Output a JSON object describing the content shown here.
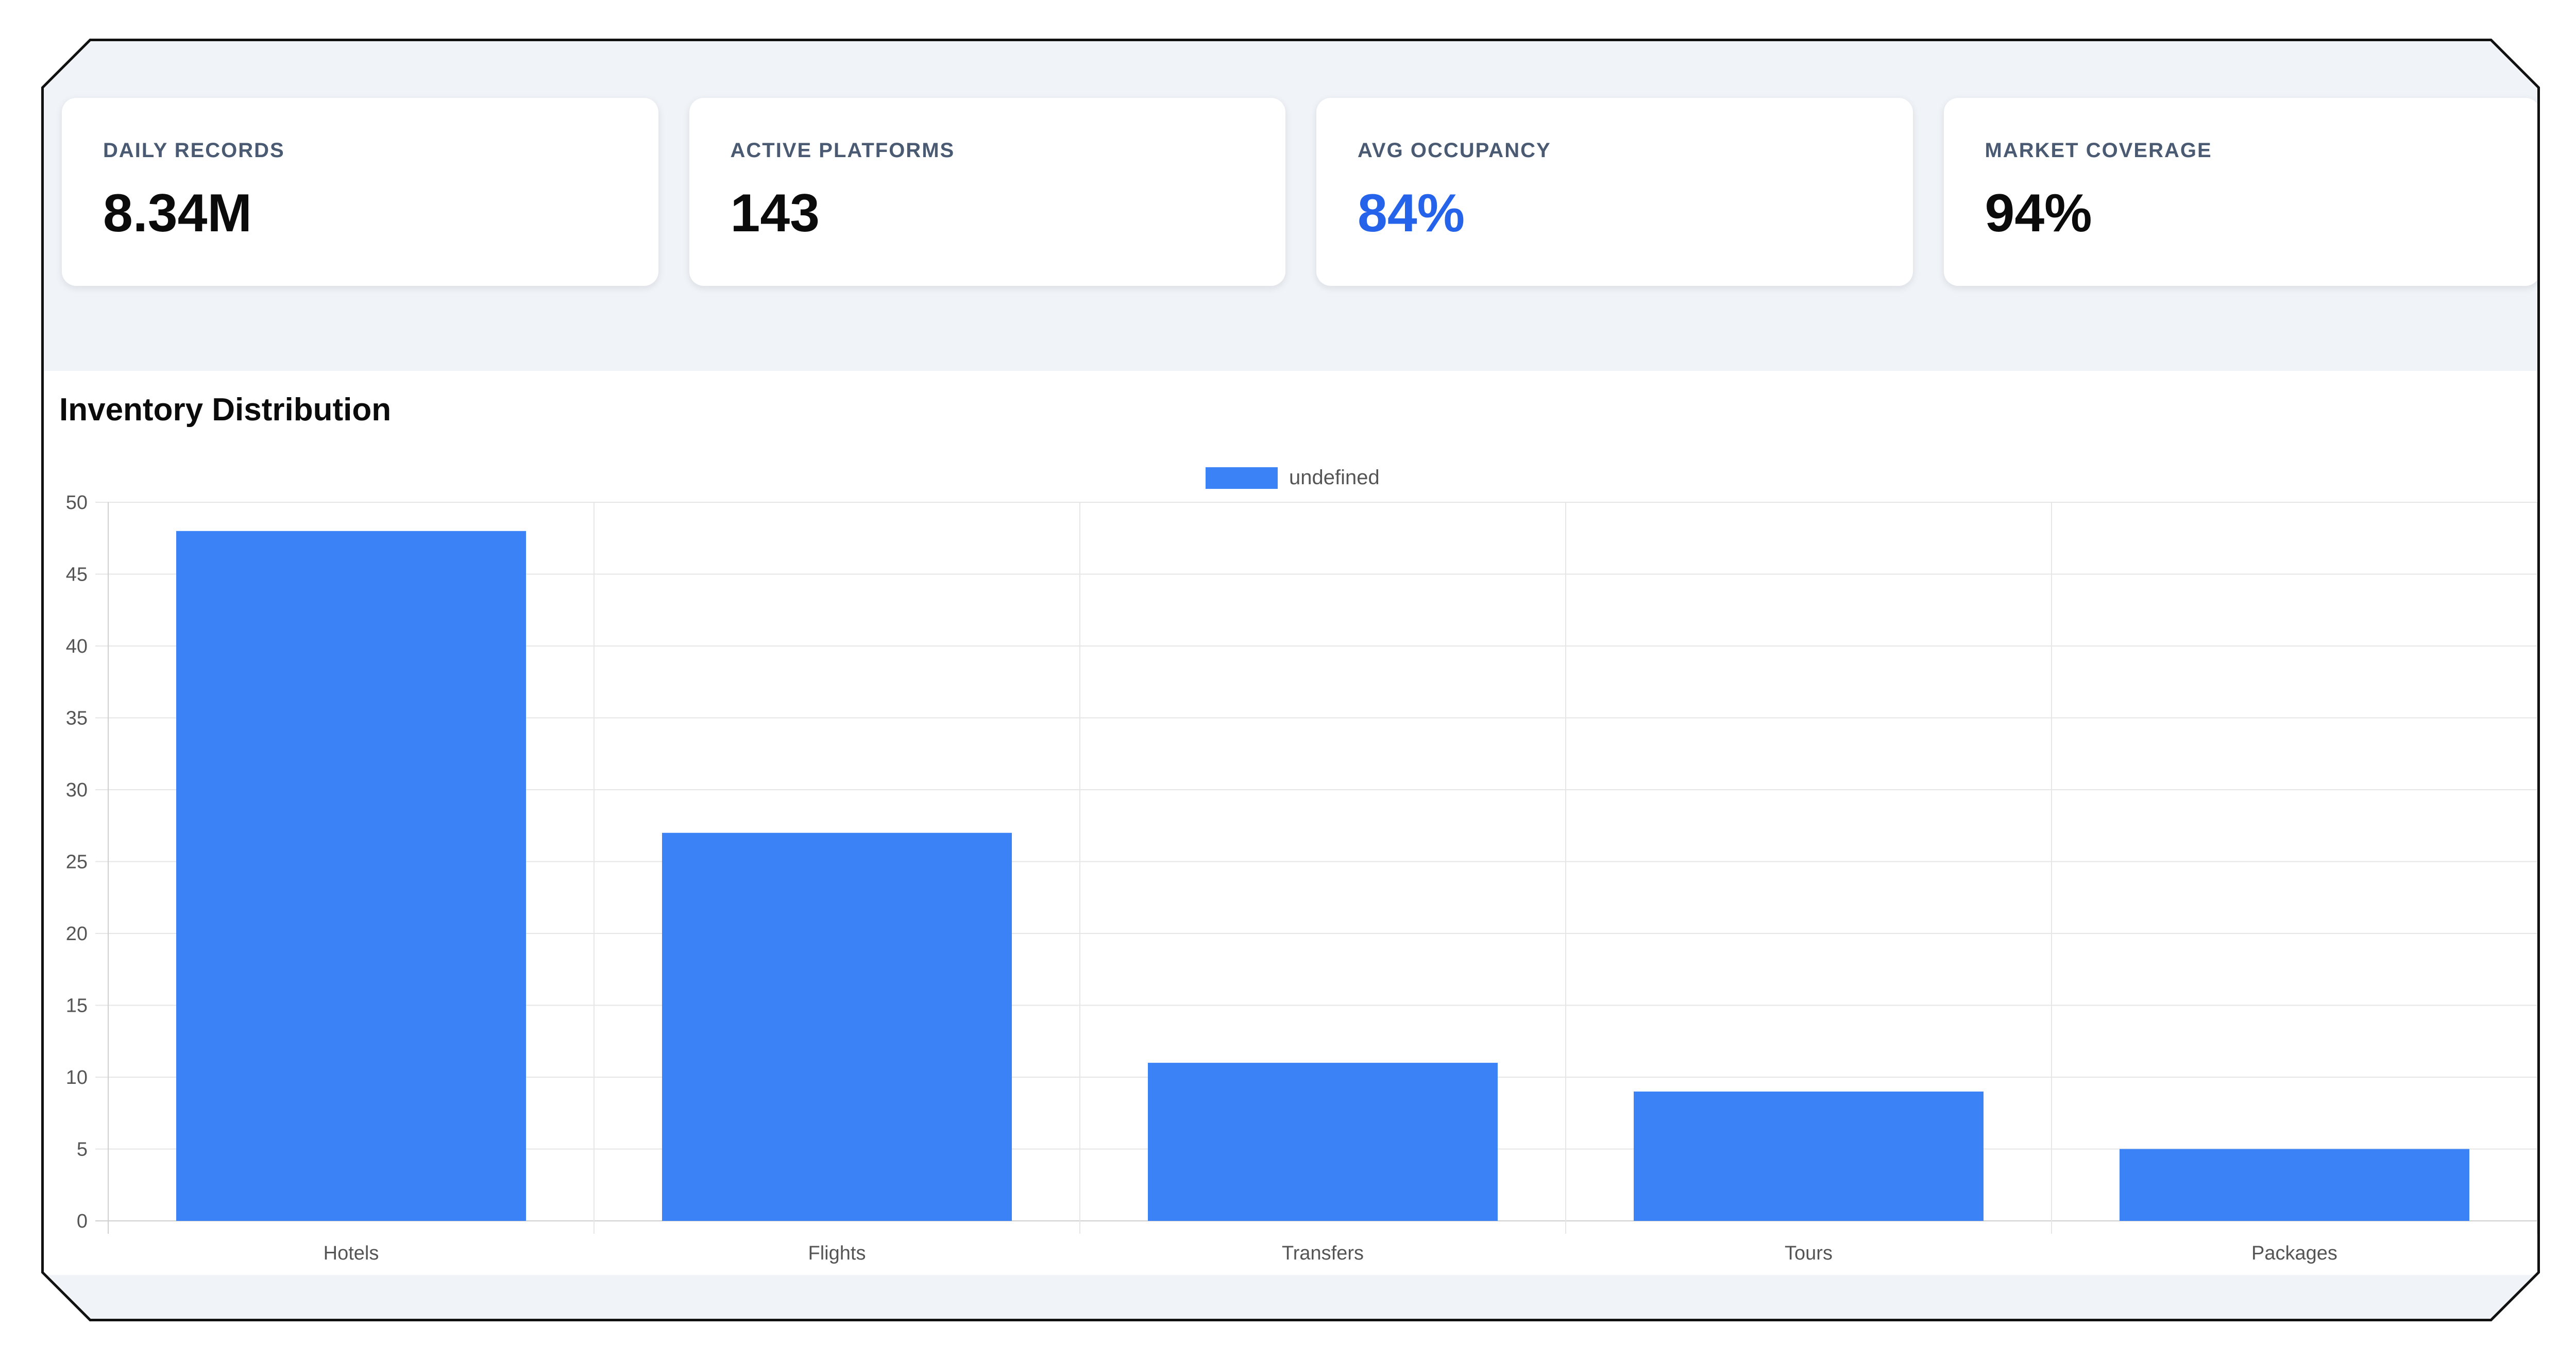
{
  "stats": [
    {
      "label": "DAILY RECORDS",
      "value": "8.34M",
      "accent": false
    },
    {
      "label": "ACTIVE PLATFORMS",
      "value": "143",
      "accent": false
    },
    {
      "label": "AVG OCCUPANCY",
      "value": "84%",
      "accent": true
    },
    {
      "label": "MARKET COVERAGE",
      "value": "94%",
      "accent": false
    }
  ],
  "colors": {
    "accent": "#2563eb",
    "bar": "#3b82f6",
    "background": "#f0f4f8"
  },
  "chart_data": {
    "type": "bar",
    "title": "Inventory Distribution",
    "categories": [
      "Hotels",
      "Flights",
      "Transfers",
      "Tours",
      "Packages"
    ],
    "series": [
      {
        "name": "undefined",
        "values": [
          48,
          27,
          11,
          9,
          5
        ]
      }
    ],
    "ylim": [
      0,
      50
    ],
    "yticks": [
      0,
      5,
      10,
      15,
      20,
      25,
      30,
      35,
      40,
      45,
      50
    ],
    "grid": true,
    "legend": "top-center",
    "xlabel": "",
    "ylabel": ""
  }
}
